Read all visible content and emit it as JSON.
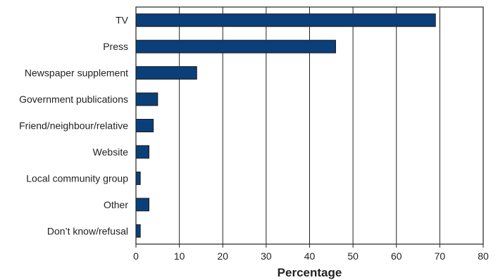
{
  "chart_data": {
    "type": "bar",
    "orientation": "horizontal",
    "categories": [
      "TV",
      "Press",
      "Newspaper supplement",
      "Government publications",
      "Friend/neighbour/relative",
      "Website",
      "Local community group",
      "Other",
      "Don’t know/refusal"
    ],
    "values": [
      69,
      46,
      14,
      5,
      4,
      3,
      1,
      3,
      1
    ],
    "xlabel": "Percentage",
    "xlim": [
      0,
      80
    ],
    "xticks": [
      "0",
      "10",
      "20",
      "30",
      "40",
      "50",
      "60",
      "70",
      "80"
    ],
    "grid": "vertical",
    "bar_color": "#0b3f7a"
  }
}
